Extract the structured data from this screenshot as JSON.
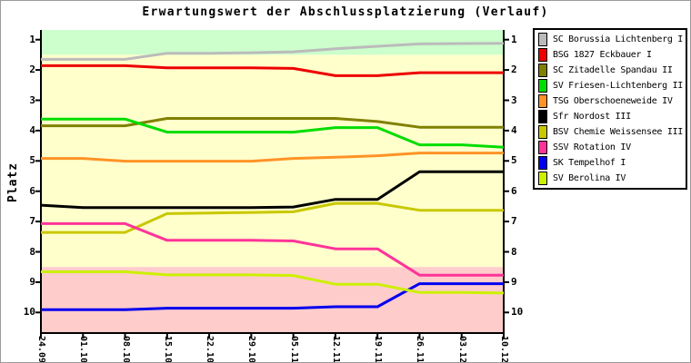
{
  "title": "Erwartungswert der Abschlussplatzierung (Verlauf)",
  "y_axis": {
    "label": "Platz",
    "ticks": [
      "1",
      "2",
      "3",
      "4",
      "5",
      "6",
      "7",
      "8",
      "9",
      "10"
    ]
  },
  "x_axis": {
    "ticks": [
      "24.09",
      "01.10",
      "08.10",
      "15.10",
      "22.10",
      "29.10",
      "05.11",
      "12.11",
      "19.11",
      "26.11",
      "03.12",
      "10.12"
    ]
  },
  "chart_data": {
    "type": "line",
    "title": "Erwartungswert der Abschlussplatzierung (Verlauf)",
    "xlabel": "",
    "ylabel": "Platz",
    "x_categories": [
      "24.09",
      "01.10",
      "08.10",
      "15.10",
      "22.10",
      "29.10",
      "05.11",
      "12.11",
      "19.11",
      "26.11",
      "03.12",
      "10.12"
    ],
    "y_ticks": [
      1,
      2,
      3,
      4,
      5,
      6,
      7,
      8,
      9,
      10
    ],
    "ylim": [
      0.68,
      10.65
    ],
    "y_inverted": true,
    "grid": false,
    "legend_position": "right",
    "bands": [
      {
        "name": "promotion-zone",
        "color": "#ccffcc",
        "from": 0.68,
        "to": 1.5
      },
      {
        "name": "midtable-zone",
        "color": "#ffffcc",
        "from": 1.5,
        "to": 8.5
      },
      {
        "name": "relegation-zone",
        "color": "#ffcccc",
        "from": 8.5,
        "to": 10.65
      }
    ],
    "series": [
      {
        "name": "SC Borussia Lichtenberg I",
        "color": "#bbbbbb",
        "values": [
          1.65,
          1.65,
          1.65,
          1.45,
          1.45,
          1.43,
          1.4,
          1.3,
          1.22,
          1.14,
          1.13,
          1.12
        ]
      },
      {
        "name": "BSG 1827 Eckbauer I",
        "color": "#ee0000",
        "values": [
          1.86,
          1.86,
          1.86,
          1.93,
          1.93,
          1.93,
          1.95,
          2.19,
          2.19,
          2.09,
          2.09,
          2.09
        ]
      },
      {
        "name": "SC Zitadelle Spandau II",
        "color": "#808000",
        "values": [
          3.84,
          3.84,
          3.84,
          3.6,
          3.6,
          3.6,
          3.6,
          3.6,
          3.7,
          3.89,
          3.89,
          3.89
        ]
      },
      {
        "name": "SV Friesen-Lichtenberg II",
        "color": "#00dd00",
        "values": [
          3.62,
          3.62,
          3.62,
          4.05,
          4.05,
          4.05,
          4.05,
          3.9,
          3.9,
          4.47,
          4.47,
          4.55
        ]
      },
      {
        "name": "TSG Oberschoeneweide IV",
        "color": "#ff9326",
        "values": [
          4.92,
          4.92,
          5.01,
          5.01,
          5.01,
          5.01,
          4.92,
          4.88,
          4.83,
          4.74,
          4.74,
          4.74
        ]
      },
      {
        "name": "Sfr Nordost III",
        "color": "#000000",
        "values": [
          6.46,
          6.54,
          6.54,
          6.54,
          6.54,
          6.54,
          6.52,
          6.27,
          6.27,
          5.36,
          5.36,
          5.36
        ]
      },
      {
        "name": "BSV Chemie Weissensee III",
        "color": "#c8c800",
        "values": [
          7.36,
          7.36,
          7.36,
          6.74,
          6.72,
          6.7,
          6.68,
          6.4,
          6.4,
          6.63,
          6.63,
          6.63
        ]
      },
      {
        "name": "SSV Rotation IV",
        "color": "#ff3399",
        "values": [
          7.07,
          7.07,
          7.07,
          7.62,
          7.62,
          7.62,
          7.64,
          7.9,
          7.9,
          8.77,
          8.77,
          8.77
        ]
      },
      {
        "name": "SK Tempelhof I",
        "color": "#0000ee",
        "values": [
          9.91,
          9.91,
          9.91,
          9.86,
          9.86,
          9.86,
          9.86,
          9.81,
          9.81,
          9.05,
          9.05,
          9.05
        ]
      },
      {
        "name": "SV Berolina IV",
        "color": "#ccf000",
        "values": [
          8.66,
          8.66,
          8.66,
          8.76,
          8.76,
          8.76,
          8.78,
          9.07,
          9.07,
          9.34,
          9.34,
          9.36
        ]
      }
    ]
  }
}
